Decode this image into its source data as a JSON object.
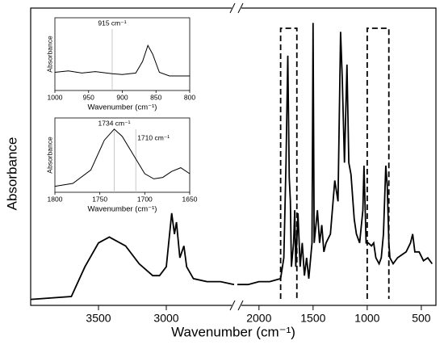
{
  "chart_data": [
    {
      "type": "line",
      "xlabel": "Wavenumber (cm⁻¹)",
      "ylabel": "Absorbance",
      "color": "#000000",
      "x_segments": [
        {
          "xlim": [
            4000,
            2500
          ],
          "xticks": [
            3500,
            3000
          ]
        },
        {
          "xlim": [
            2200,
            365
          ],
          "xticks": [
            2000,
            1500,
            1000,
            500
          ]
        }
      ],
      "ylim": [
        0,
        1
      ],
      "highlight_ranges": [
        [
          1800,
          1650
        ],
        [
          1000,
          800
        ]
      ],
      "x": [
        4000,
        3700,
        3600,
        3500,
        3420,
        3300,
        3200,
        3100,
        3050,
        3000,
        2960,
        2940,
        2925,
        2900,
        2870,
        2850,
        2800,
        2700,
        2600,
        2500,
        2200,
        2100,
        2000,
        1900,
        1800,
        1770,
        1750,
        1734,
        1720,
        1710,
        1700,
        1680,
        1670,
        1660,
        1640,
        1620,
        1600,
        1580,
        1560,
        1540,
        1510,
        1500,
        1490,
        1460,
        1440,
        1420,
        1400,
        1380,
        1340,
        1300,
        1270,
        1246,
        1230,
        1210,
        1187,
        1170,
        1150,
        1120,
        1100,
        1070,
        1040,
        1030,
        1010,
        990,
        960,
        940,
        920,
        890,
        870,
        850,
        828,
        815,
        800,
        790,
        760,
        720,
        680,
        640,
        600,
        580,
        560,
        520,
        480,
        440,
        400
      ],
      "values": [
        0.02,
        0.03,
        0.13,
        0.21,
        0.23,
        0.2,
        0.14,
        0.1,
        0.1,
        0.13,
        0.31,
        0.24,
        0.28,
        0.16,
        0.2,
        0.13,
        0.09,
        0.08,
        0.08,
        0.07,
        0.07,
        0.07,
        0.08,
        0.08,
        0.09,
        0.16,
        0.48,
        0.84,
        0.43,
        0.35,
        0.13,
        0.21,
        0.32,
        0.13,
        0.31,
        0.13,
        0.21,
        0.1,
        0.16,
        0.09,
        0.21,
        0.95,
        0.21,
        0.32,
        0.21,
        0.27,
        0.18,
        0.21,
        0.24,
        0.42,
        0.35,
        0.92,
        0.76,
        0.48,
        0.81,
        0.48,
        0.44,
        0.29,
        0.24,
        0.21,
        0.32,
        0.47,
        0.21,
        0.21,
        0.2,
        0.21,
        0.16,
        0.14,
        0.16,
        0.24,
        0.47,
        0.4,
        0.21,
        0.16,
        0.14,
        0.16,
        0.17,
        0.18,
        0.21,
        0.24,
        0.18,
        0.18,
        0.15,
        0.16,
        0.14
      ]
    },
    {
      "type": "line",
      "xlabel": "Wavenumber (cm⁻¹)",
      "ylabel": "Absorbance",
      "color": "#000000",
      "xlim": [
        1000,
        800
      ],
      "xticks": [
        1000,
        950,
        900,
        850,
        800
      ],
      "ylim": [
        0,
        1
      ],
      "annotations": [
        {
          "text": "915 cm⁻¹",
          "x": 915
        }
      ],
      "x": [
        1000,
        980,
        960,
        940,
        915,
        900,
        880,
        870,
        862,
        855,
        845,
        830,
        800
      ],
      "values": [
        0.25,
        0.27,
        0.24,
        0.26,
        0.23,
        0.22,
        0.24,
        0.4,
        0.62,
        0.5,
        0.25,
        0.2,
        0.2
      ]
    },
    {
      "type": "line",
      "xlabel": "Wavenumber (cm⁻¹)",
      "ylabel": "Absorbance",
      "color": "#000000",
      "xlim": [
        1800,
        1650
      ],
      "xticks": [
        1800,
        1750,
        1700,
        1650
      ],
      "ylim": [
        0,
        1
      ],
      "annotations": [
        {
          "text": "1734 cm⁻¹",
          "x": 1734
        },
        {
          "text": "1710 cm⁻¹",
          "x": 1710
        }
      ],
      "x": [
        1800,
        1780,
        1760,
        1745,
        1734,
        1725,
        1710,
        1700,
        1690,
        1680,
        1670,
        1660,
        1650
      ],
      "values": [
        0.08,
        0.12,
        0.3,
        0.7,
        0.85,
        0.75,
        0.45,
        0.25,
        0.18,
        0.2,
        0.28,
        0.33,
        0.25
      ]
    }
  ]
}
